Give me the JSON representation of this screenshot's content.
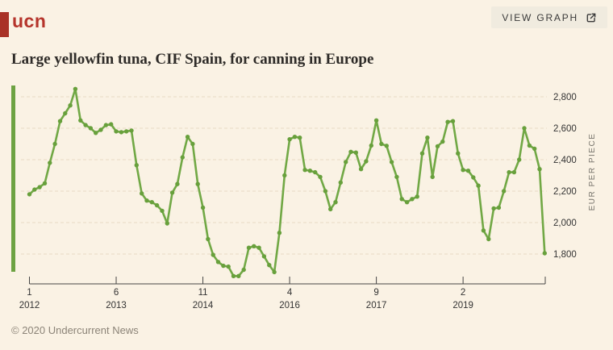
{
  "header": {
    "logo_text": "ucn",
    "view_graph_label": "VIEW GRAPH"
  },
  "title": "Large yellowfin tuna, CIF Spain, for canning in Europe",
  "footer": {
    "copyright": "© 2020 Undercurrent News"
  },
  "colors": {
    "background": "#faf2e4",
    "logo_red": "#b5342b",
    "logo_bar_red": "#a93227",
    "accent_green_bar": "#6da242",
    "series_line": "#71a845",
    "series_dot": "#68a03c",
    "gridline": "#e8d9c5",
    "axis": "#454545",
    "tick_text": "#333333",
    "unit_text": "#76736b",
    "button_bg": "#f0ebdf",
    "button_text": "#3a3a3a",
    "title_text": "#2e2b28",
    "footer_text": "#8c8478"
  },
  "chart_data": {
    "type": "line",
    "title": "Large yellowfin tuna, CIF Spain, for canning in Europe",
    "xlabel": "",
    "ylabel": "EUR PER PIECE",
    "legend": "none",
    "grid": "horizontal dashed",
    "y_ticks": [
      2800,
      2600,
      2400,
      2200,
      2000,
      1800
    ],
    "ylim": [
      1600,
      2870
    ],
    "x_ticks": [
      {
        "month": "1",
        "year": "2012",
        "index": 0
      },
      {
        "month": "6",
        "year": "2013",
        "index": 17
      },
      {
        "month": "11",
        "year": "2014",
        "index": 34
      },
      {
        "month": "4",
        "year": "2016",
        "index": 51
      },
      {
        "month": "9",
        "year": "2017",
        "index": 68
      },
      {
        "month": "2",
        "year": "2019",
        "index": 85
      }
    ],
    "start": "2012-01",
    "frequency": "monthly",
    "values": [
      2180,
      2210,
      2225,
      2250,
      2380,
      2500,
      2645,
      2695,
      2745,
      2850,
      2650,
      2620,
      2600,
      2570,
      2590,
      2620,
      2625,
      2580,
      2575,
      2580,
      2585,
      2365,
      2185,
      2140,
      2130,
      2110,
      2075,
      1995,
      2190,
      2245,
      2415,
      2545,
      2500,
      2245,
      2095,
      1895,
      1795,
      1750,
      1725,
      1720,
      1660,
      1660,
      1700,
      1840,
      1850,
      1840,
      1785,
      1730,
      1685,
      1935,
      2300,
      2530,
      2545,
      2540,
      2335,
      2330,
      2320,
      2290,
      2200,
      2085,
      2130,
      2255,
      2385,
      2450,
      2445,
      2340,
      2390,
      2490,
      2650,
      2500,
      2488,
      2385,
      2290,
      2150,
      2130,
      2150,
      2165,
      2440,
      2540,
      2290,
      2485,
      2515,
      2640,
      2645,
      2440,
      2335,
      2330,
      2287,
      2235,
      1950,
      1895,
      2090,
      2095,
      2200,
      2320,
      2320,
      2400,
      2600,
      2490,
      2470,
      2340,
      1805
    ]
  }
}
